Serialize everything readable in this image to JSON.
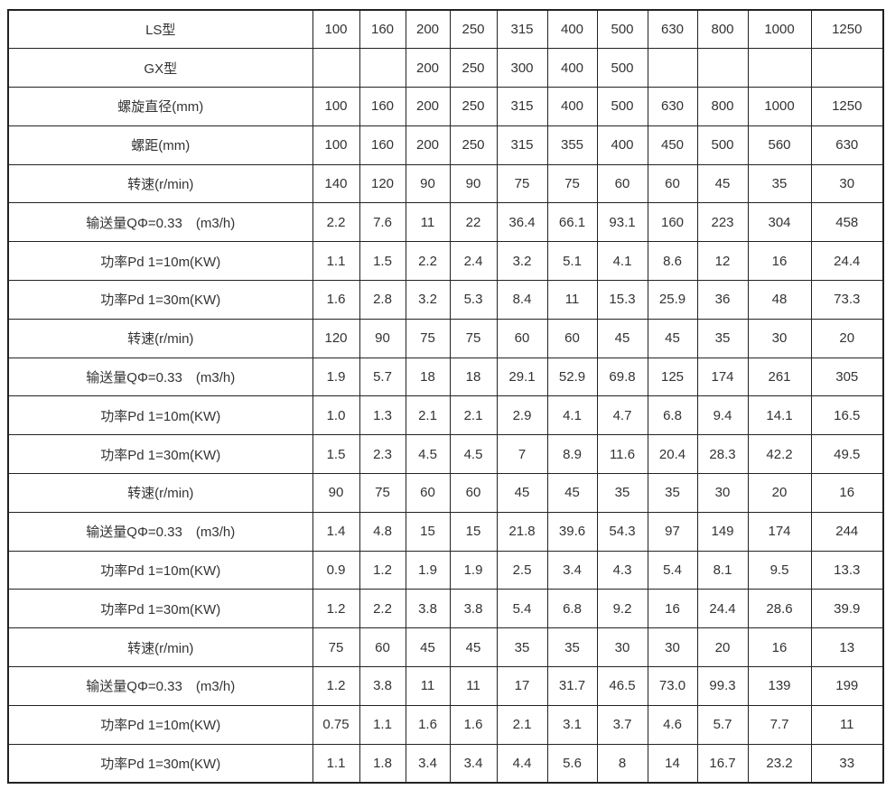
{
  "table": {
    "title": "screw-conveyor-model-specifications",
    "text_color": "#333333",
    "border_color": "#222222",
    "background_color": "#ffffff",
    "rows": [
      {
        "label": "LS型",
        "values": [
          "100",
          "160",
          "200",
          "250",
          "315",
          "400",
          "500",
          "630",
          "800",
          "1000",
          "1250"
        ]
      },
      {
        "label": "GX型",
        "values": [
          "",
          "",
          "200",
          "250",
          "300",
          "400",
          "500",
          "",
          "",
          "",
          ""
        ]
      },
      {
        "label": "螺旋直径(mm)",
        "values": [
          "100",
          "160",
          "200",
          "250",
          "315",
          "400",
          "500",
          "630",
          "800",
          "1000",
          "1250"
        ]
      },
      {
        "label": "螺距(mm)",
        "values": [
          "100",
          "160",
          "200",
          "250",
          "315",
          "355",
          "400",
          "450",
          "500",
          "560",
          "630"
        ]
      },
      {
        "label": "转速(r/min)",
        "values": [
          "140",
          "120",
          "90",
          "90",
          "75",
          "75",
          "60",
          "60",
          "45",
          "35",
          "30"
        ]
      },
      {
        "label": "输送量QΦ=0.33　(m3/h)",
        "values": [
          "2.2",
          "7.6",
          "11",
          "22",
          "36.4",
          "66.1",
          "93.1",
          "160",
          "223",
          "304",
          "458"
        ]
      },
      {
        "label": "功率Pd 1=10m(KW)",
        "values": [
          "1.1",
          "1.5",
          "2.2",
          "2.4",
          "3.2",
          "5.1",
          "4.1",
          "8.6",
          "12",
          "16",
          "24.4"
        ]
      },
      {
        "label": "功率Pd 1=30m(KW)",
        "values": [
          "1.6",
          "2.8",
          "3.2",
          "5.3",
          "8.4",
          "11",
          "15.3",
          "25.9",
          "36",
          "48",
          "73.3"
        ]
      },
      {
        "label": "转速(r/min)",
        "values": [
          "120",
          "90",
          "75",
          "75",
          "60",
          "60",
          "45",
          "45",
          "35",
          "30",
          "20"
        ]
      },
      {
        "label": "输送量QΦ=0.33　(m3/h)",
        "values": [
          "1.9",
          "5.7",
          "18",
          "18",
          "29.1",
          "52.9",
          "69.8",
          "125",
          "174",
          "261",
          "305"
        ]
      },
      {
        "label": "功率Pd 1=10m(KW)",
        "values": [
          "1.0",
          "1.3",
          "2.1",
          "2.1",
          "2.9",
          "4.1",
          "4.7",
          "6.8",
          "9.4",
          "14.1",
          "16.5"
        ]
      },
      {
        "label": "功率Pd 1=30m(KW)",
        "values": [
          "1.5",
          "2.3",
          "4.5",
          "4.5",
          "7",
          "8.9",
          "11.6",
          "20.4",
          "28.3",
          "42.2",
          "49.5"
        ]
      },
      {
        "label": "转速(r/min)",
        "values": [
          "90",
          "75",
          "60",
          "60",
          "45",
          "45",
          "35",
          "35",
          "30",
          "20",
          "16"
        ]
      },
      {
        "label": "输送量QΦ=0.33　(m3/h)",
        "values": [
          "1.4",
          "4.8",
          "15",
          "15",
          "21.8",
          "39.6",
          "54.3",
          "97",
          "149",
          "174",
          "244"
        ]
      },
      {
        "label": "功率Pd 1=10m(KW)",
        "values": [
          "0.9",
          "1.2",
          "1.9",
          "1.9",
          "2.5",
          "3.4",
          "4.3",
          "5.4",
          "8.1",
          "9.5",
          "13.3"
        ]
      },
      {
        "label": "功率Pd 1=30m(KW)",
        "values": [
          "1.2",
          "2.2",
          "3.8",
          "3.8",
          "5.4",
          "6.8",
          "9.2",
          "16",
          "24.4",
          "28.6",
          "39.9"
        ]
      },
      {
        "label": "转速(r/min)",
        "values": [
          "75",
          "60",
          "45",
          "45",
          "35",
          "35",
          "30",
          "30",
          "20",
          "16",
          "13"
        ]
      },
      {
        "label": "输送量QΦ=0.33　(m3/h)",
        "values": [
          "1.2",
          "3.8",
          "11",
          "11",
          "17",
          "31.7",
          "46.5",
          "73.0",
          "99.3",
          "139",
          "199"
        ]
      },
      {
        "label": "功率Pd 1=10m(KW)",
        "values": [
          "0.75",
          "1.1",
          "1.6",
          "1.6",
          "2.1",
          "3.1",
          "3.7",
          "4.6",
          "5.7",
          "7.7",
          "11"
        ]
      },
      {
        "label": "功率Pd 1=30m(KW)",
        "values": [
          "1.1",
          "1.8",
          "3.4",
          "3.4",
          "4.4",
          "5.6",
          "8",
          "14",
          "16.7",
          "23.2",
          "33"
        ]
      }
    ]
  }
}
